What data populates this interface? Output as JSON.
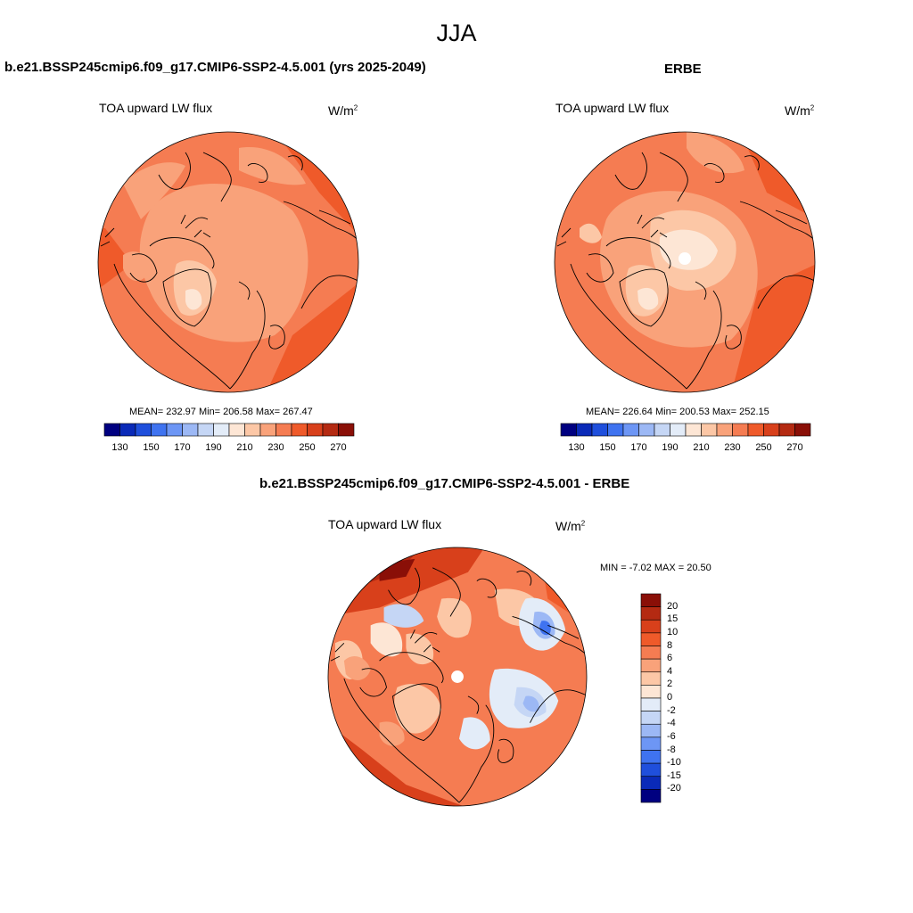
{
  "figure": {
    "season": "JJA",
    "top_left": {
      "title": "b.e21.BSSP245cmip6.f09_g17.CMIP6-SSP2-4.5.001 (yrs 2025-2049)",
      "variable": "TOA upward LW flux",
      "units_base": "W/m",
      "units_exp": "2",
      "stats": "MEAN= 232.97  Min= 206.58  Max= 267.47"
    },
    "top_right": {
      "title": "ERBE",
      "variable": "TOA upward LW flux",
      "units_base": "W/m",
      "units_exp": "2",
      "stats": "MEAN= 226.64  Min= 200.53  Max= 252.15"
    },
    "bottom": {
      "title": "b.e21.BSSP245cmip6.f09_g17.CMIP6-SSP2-4.5.001 - ERBE",
      "variable": "TOA upward LW flux",
      "units_base": "W/m",
      "units_exp": "2",
      "stats": "MIN =  -7.02 MAX =  20.50"
    },
    "abs_colorbar": {
      "tick_labels": [
        "130",
        "150",
        "170",
        "190",
        "210",
        "230",
        "250",
        "270"
      ],
      "colors": [
        "#000080",
        "#0a2ab8",
        "#1f4fdc",
        "#3f73f0",
        "#6d96f5",
        "#9cb8f5",
        "#c5d6f5",
        "#e3ecf8",
        "#fde6d5",
        "#fcc7a6",
        "#f9a27a",
        "#f57c52",
        "#ef5a2a",
        "#d8401b",
        "#b42a12",
        "#8a0f07"
      ]
    },
    "diff_colorbar": {
      "tick_labels": [
        "20",
        "15",
        "10",
        "8",
        "6",
        "4",
        "2",
        "0",
        "-2",
        "-4",
        "-6",
        "-8",
        "-10",
        "-15",
        "-20"
      ],
      "colors": [
        "#8a0f07",
        "#b42a12",
        "#d8401b",
        "#ef5a2a",
        "#f57c52",
        "#f9a27a",
        "#fcc7a6",
        "#fde6d5",
        "#e3ecf8",
        "#c5d6f5",
        "#9cb8f5",
        "#6d96f5",
        "#3f73f0",
        "#1f4fdc",
        "#0a2ab8",
        "#000080"
      ]
    }
  }
}
